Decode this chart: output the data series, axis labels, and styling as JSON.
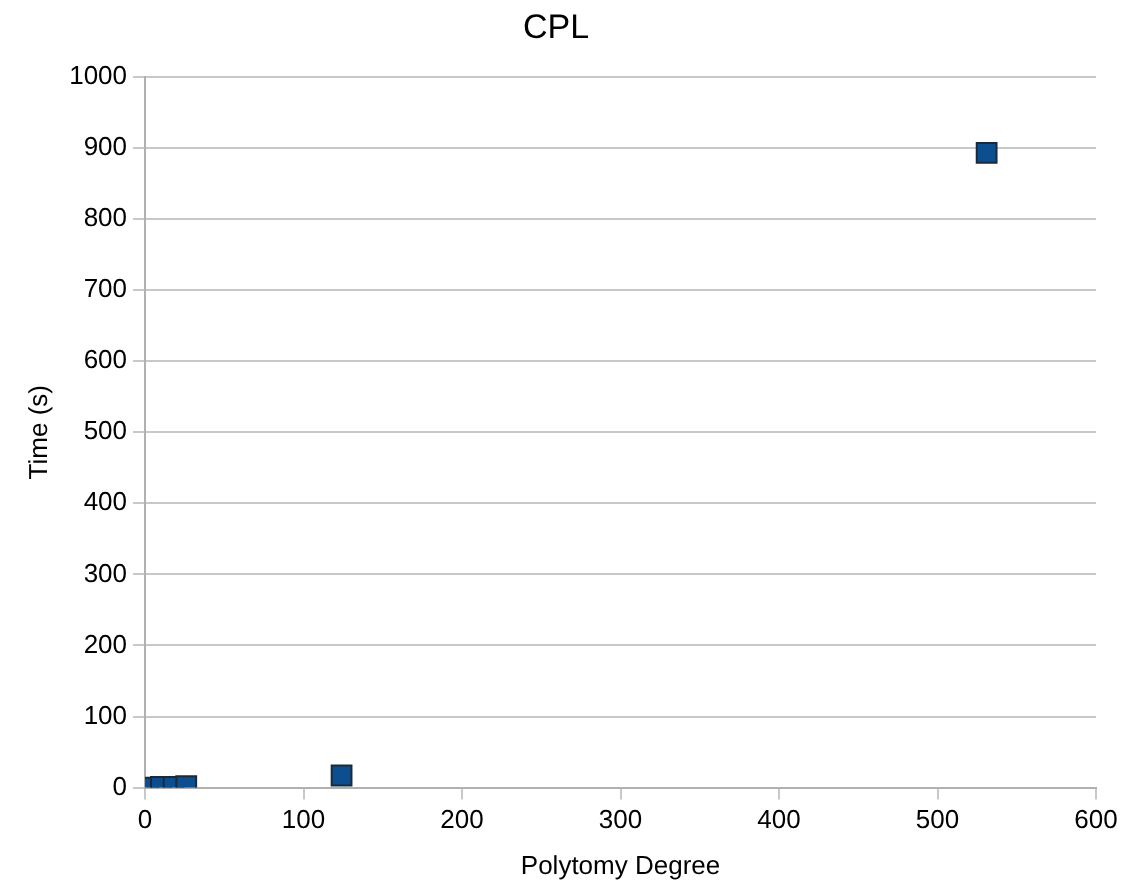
{
  "chart_data": {
    "type": "scatter",
    "title": "CPL",
    "xlabel": "Polytomy Degree",
    "ylabel": "Time (s)",
    "x": [
      2,
      10,
      18,
      26,
      124,
      531
    ],
    "series": [
      {
        "color": "#0b4f8e",
        "values": [
          0,
          1,
          1,
          2,
          17,
          893
        ]
      }
    ],
    "xlim": [
      0,
      600
    ],
    "xticks": [
      0,
      100,
      200,
      300,
      400,
      500,
      600
    ],
    "ylim": [
      0,
      1000
    ],
    "yticks": [
      0,
      100,
      200,
      300,
      400,
      500,
      600,
      700,
      800,
      900,
      1000
    ],
    "grid": "y",
    "legend": false,
    "marker": "square"
  }
}
